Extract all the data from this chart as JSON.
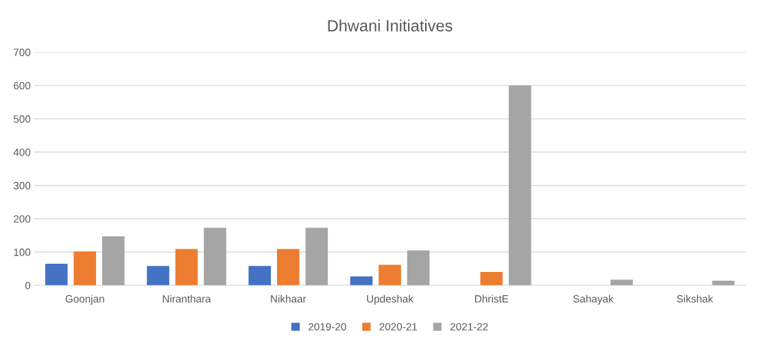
{
  "chart_data": {
    "type": "bar",
    "title": "Dhwani Initiatives",
    "categories": [
      "Goonjan",
      "Niranthara",
      "Nikhaar",
      "Updeshak",
      "DhristE",
      "Sahayak",
      "Sikshak"
    ],
    "series": [
      {
        "name": "2019-20",
        "color": "#4472c4",
        "values": [
          65,
          58,
          58,
          27,
          null,
          null,
          null
        ]
      },
      {
        "name": "2020-21",
        "color": "#ed7d31",
        "values": [
          102,
          109,
          109,
          62,
          40,
          null,
          null
        ]
      },
      {
        "name": "2021-22",
        "color": "#a5a5a5",
        "values": [
          147,
          173,
          173,
          105,
          600,
          17,
          14
        ]
      }
    ],
    "ylim": [
      0,
      700
    ],
    "yticks": [
      0,
      100,
      200,
      300,
      400,
      500,
      600,
      700
    ],
    "grid": "y",
    "legend": "bottom"
  }
}
